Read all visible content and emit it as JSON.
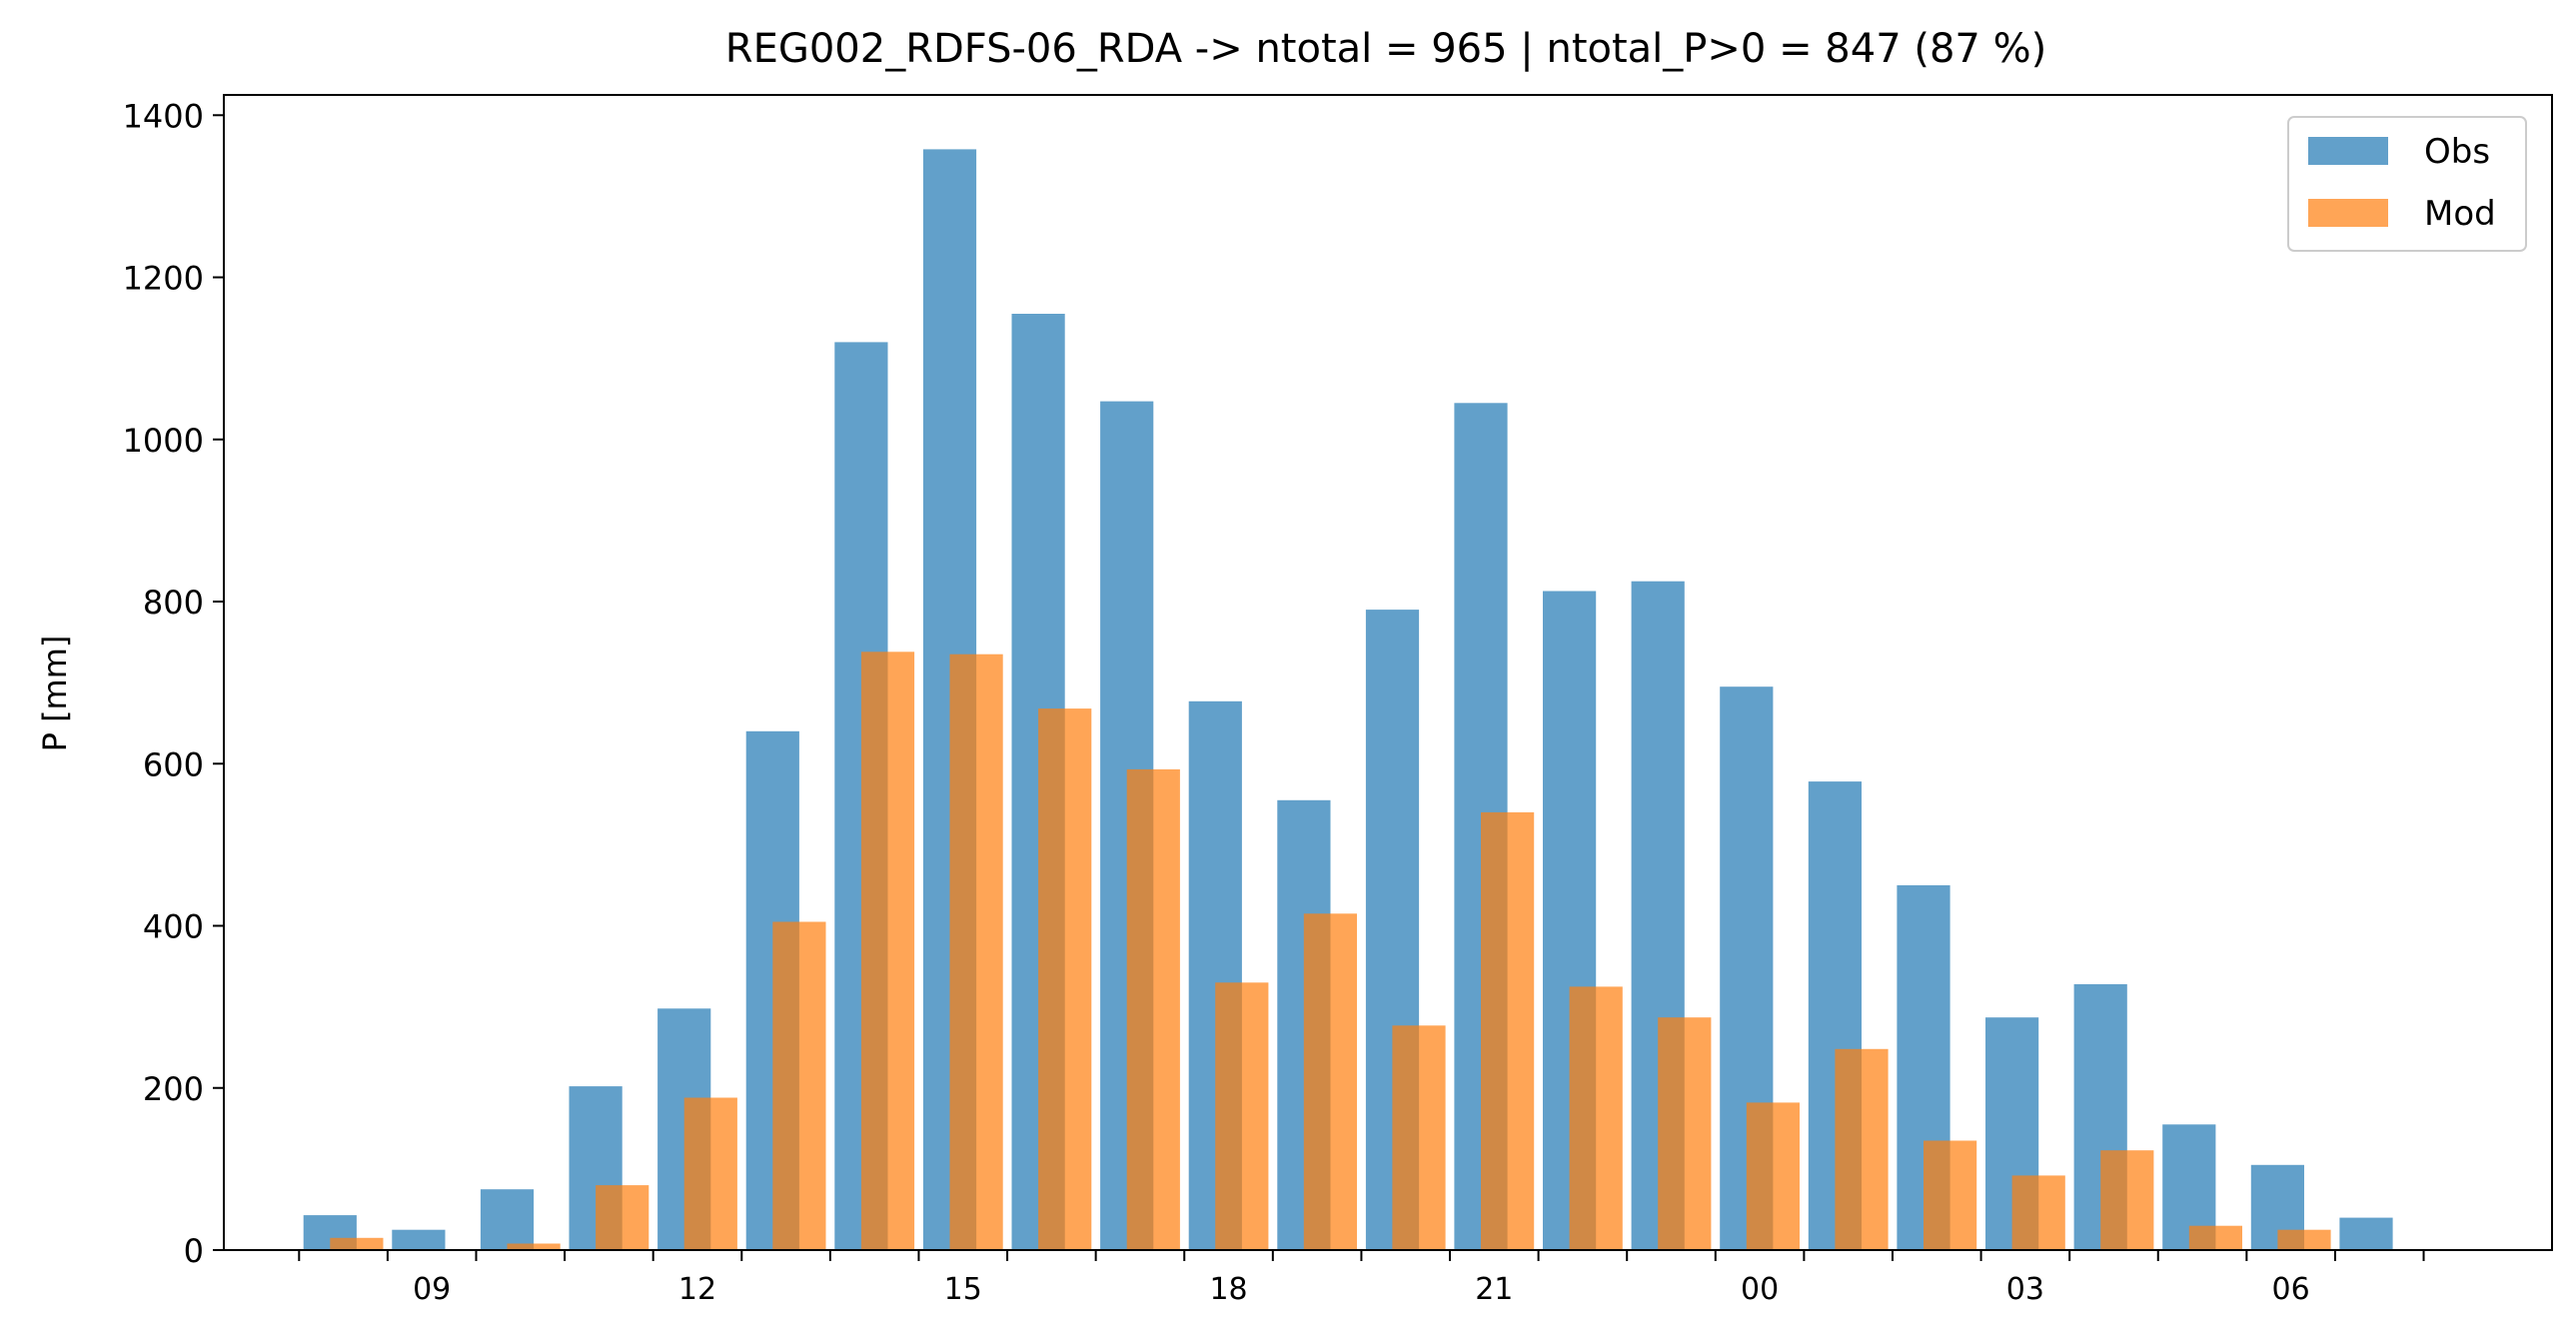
{
  "chart_data": {
    "type": "bar",
    "title": "REG002_RDFS-06_RDA -> ntotal = 965 | ntotal_P>0 = 847 (87 %)",
    "xlabel": "",
    "ylabel": "P [mm]",
    "ylim": [
      0,
      1425
    ],
    "yticks": [
      0,
      200,
      400,
      600,
      800,
      1000,
      1200,
      1400
    ],
    "xticklabels": [
      "09",
      "12",
      "15",
      "18",
      "21",
      "00",
      "03",
      "06"
    ],
    "xticklabel_hours": [
      9,
      12,
      15,
      18,
      21,
      24,
      27,
      30
    ],
    "hours": [
      8,
      9,
      10,
      11,
      12,
      13,
      14,
      15,
      16,
      17,
      18,
      19,
      20,
      21,
      22,
      23,
      24,
      25,
      26,
      27,
      28,
      29,
      30,
      31
    ],
    "series": [
      {
        "name": "Obs",
        "color": "#1f77b4",
        "values": [
          43,
          25,
          75,
          202,
          298,
          640,
          1120,
          1358,
          1155,
          1047,
          677,
          555,
          790,
          1045,
          813,
          825,
          695,
          578,
          450,
          287,
          328,
          155,
          105,
          40
        ]
      },
      {
        "name": "Mod",
        "color": "#ff7f0e",
        "values": [
          15,
          0,
          8,
          80,
          188,
          405,
          738,
          735,
          668,
          593,
          330,
          415,
          277,
          540,
          325,
          287,
          182,
          248,
          135,
          92,
          123,
          30,
          25,
          0
        ]
      }
    ],
    "grid": false,
    "legend_position": "top-right"
  }
}
